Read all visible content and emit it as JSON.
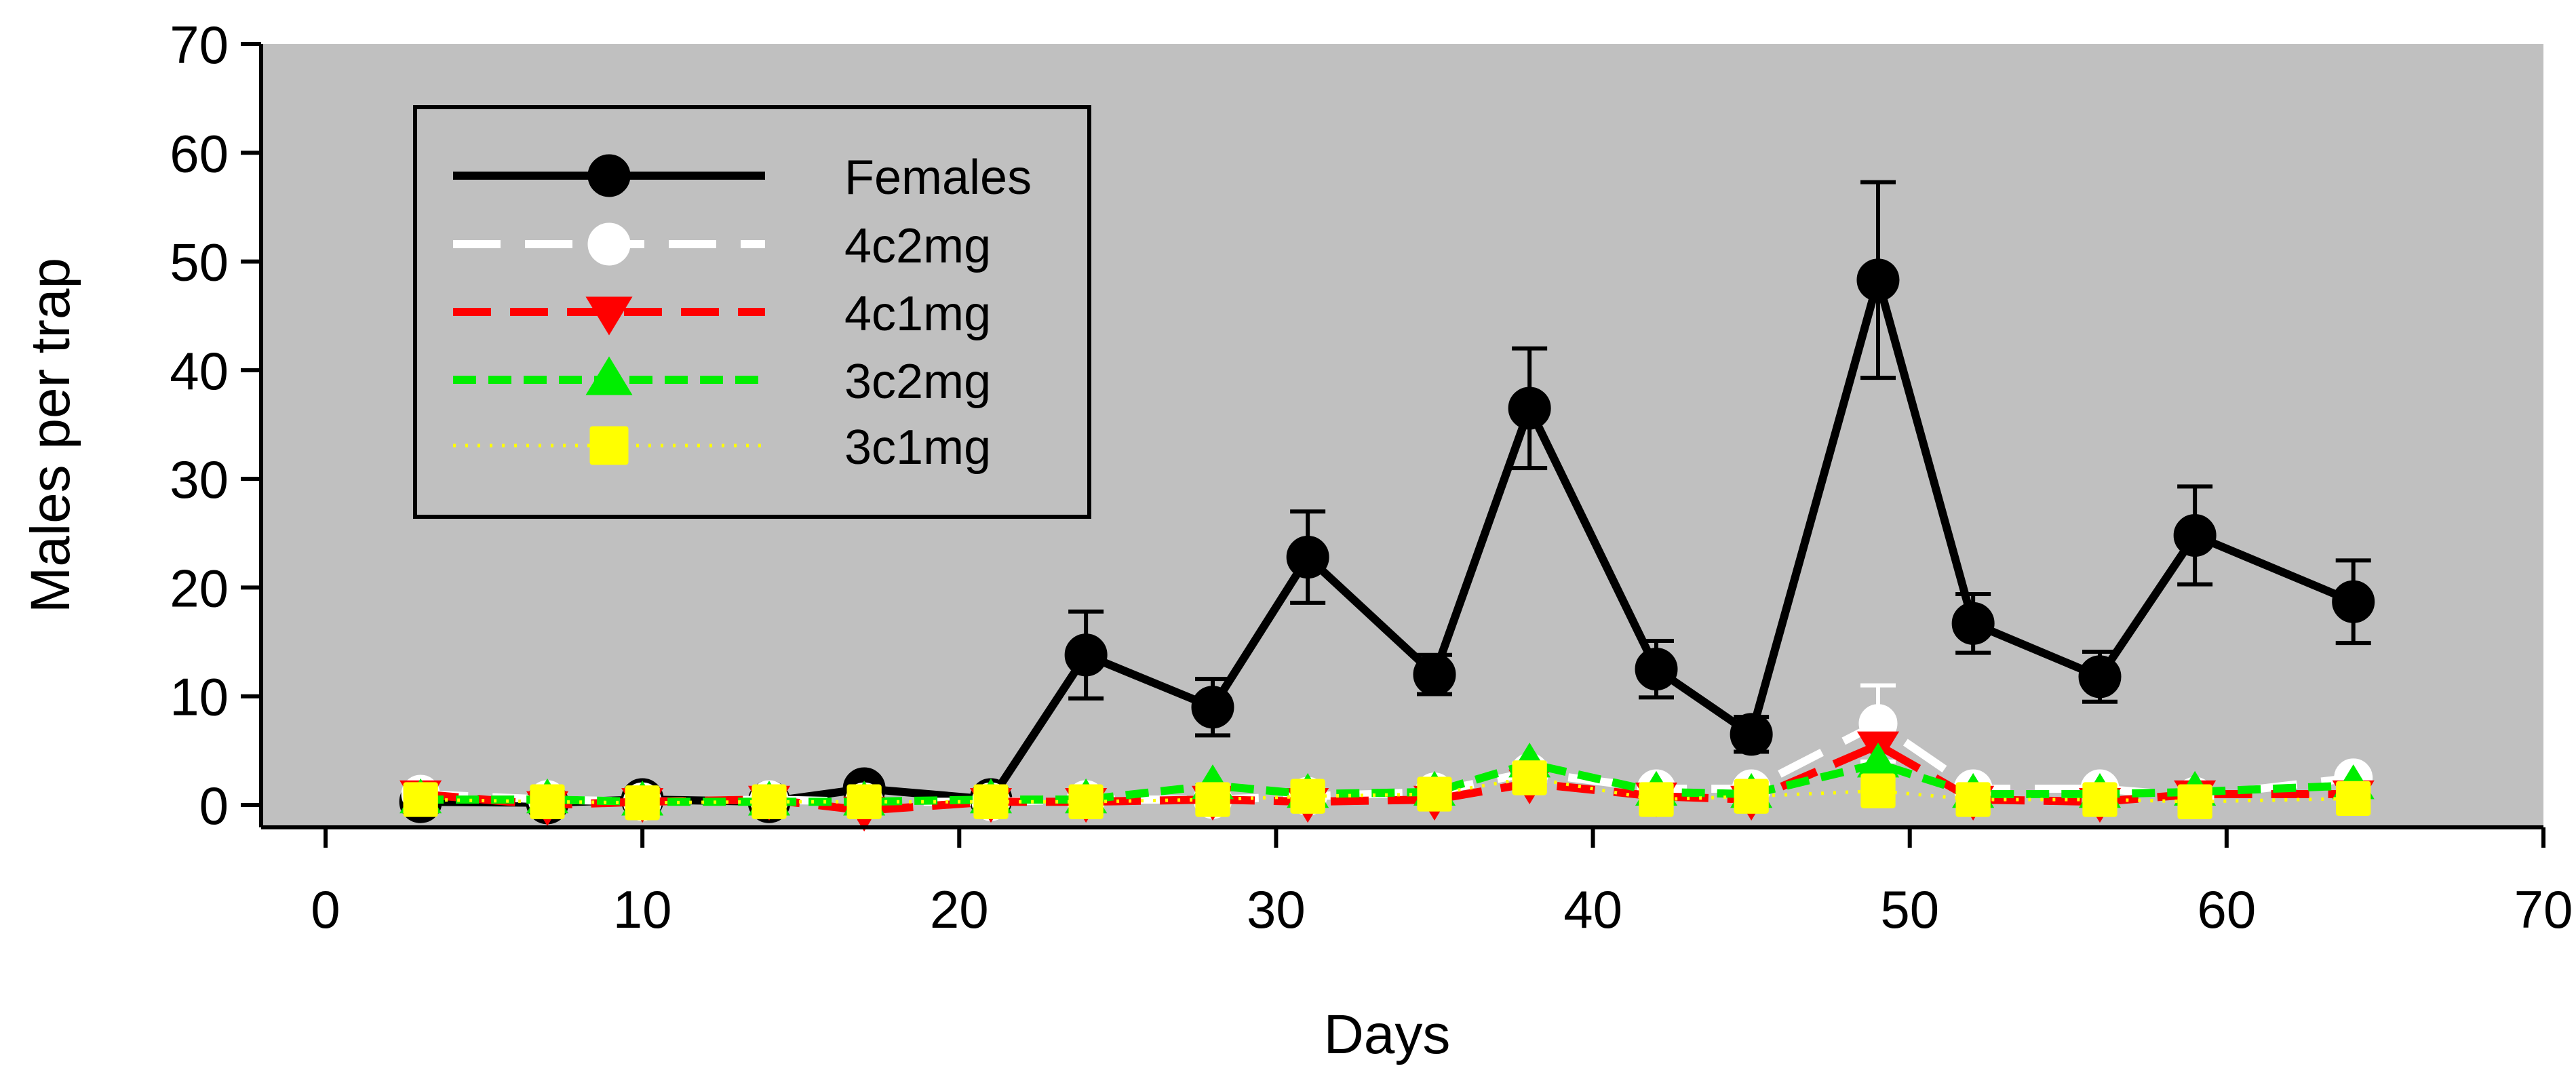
{
  "chart_data": {
    "type": "line",
    "title": "",
    "xlabel": "Days",
    "ylabel": "Males per trap",
    "xlim": [
      0,
      70
    ],
    "ylim": [
      0,
      70
    ],
    "xticks": [
      0,
      10,
      20,
      30,
      40,
      50,
      60,
      70
    ],
    "yticks": [
      0,
      10,
      20,
      30,
      40,
      50,
      60,
      70
    ],
    "grid": false,
    "legend_position": "top-left",
    "plot_background": "#c0c0c0",
    "x": [
      3,
      7,
      10,
      14,
      17,
      21,
      24,
      28,
      31,
      35,
      38,
      42,
      45,
      49,
      52,
      56,
      59,
      64
    ],
    "series": [
      {
        "name": "Females",
        "color": "#000000",
        "marker": "circle",
        "dash": "solid",
        "values": [
          0.3,
          0.2,
          0.5,
          0.3,
          1.5,
          0.5,
          13.8,
          9.0,
          22.8,
          12.0,
          36.5,
          12.5,
          6.5,
          48.3,
          16.7,
          11.8,
          24.8,
          18.7
        ],
        "errors": [
          0.5,
          0.4,
          0.4,
          0.4,
          0.6,
          0.5,
          4.0,
          2.6,
          4.2,
          1.8,
          5.5,
          2.6,
          1.6,
          9.0,
          2.7,
          2.3,
          4.5,
          3.8
        ]
      },
      {
        "name": "4c2mg",
        "color": "#ffffff",
        "marker": "circle-open",
        "dash": "longdash",
        "values": [
          1.0,
          0.5,
          0.3,
          0.5,
          0.3,
          0.3,
          0.5,
          0.5,
          0.8,
          1.2,
          3.0,
          1.5,
          1.5,
          7.5,
          1.5,
          1.5,
          0.8,
          2.5
        ],
        "errors": [
          0.4,
          0.3,
          0.3,
          0.3,
          0.3,
          0.3,
          0.3,
          0.3,
          0.4,
          0.5,
          0.8,
          0.5,
          0.5,
          3.5,
          0.5,
          0.5,
          0.4,
          0.6
        ]
      },
      {
        "name": "4c1mg",
        "color": "#ff0000",
        "marker": "triangle-down",
        "dash": "dash",
        "values": [
          1.0,
          0.0,
          0.3,
          0.5,
          -0.5,
          0.3,
          0.3,
          0.5,
          0.3,
          0.5,
          2.0,
          0.8,
          0.5,
          5.5,
          0.5,
          0.3,
          1.0,
          1.0
        ],
        "errors": []
      },
      {
        "name": "3c2mg",
        "color": "#00ee00",
        "marker": "triangle-up",
        "dash": "shortdash",
        "values": [
          0.5,
          0.5,
          0.3,
          0.3,
          0.3,
          0.5,
          0.5,
          1.8,
          1.0,
          1.2,
          3.8,
          1.2,
          1.0,
          3.8,
          1.0,
          1.0,
          1.2,
          1.8
        ],
        "errors": []
      },
      {
        "name": "3c1mg",
        "color": "#ffff00",
        "marker": "square",
        "dash": "dotted",
        "values": [
          0.5,
          0.3,
          0.2,
          0.3,
          0.3,
          0.3,
          0.3,
          0.5,
          0.8,
          1.0,
          2.5,
          0.5,
          0.8,
          1.3,
          0.5,
          0.5,
          0.3,
          0.6
        ],
        "errors": []
      }
    ]
  }
}
